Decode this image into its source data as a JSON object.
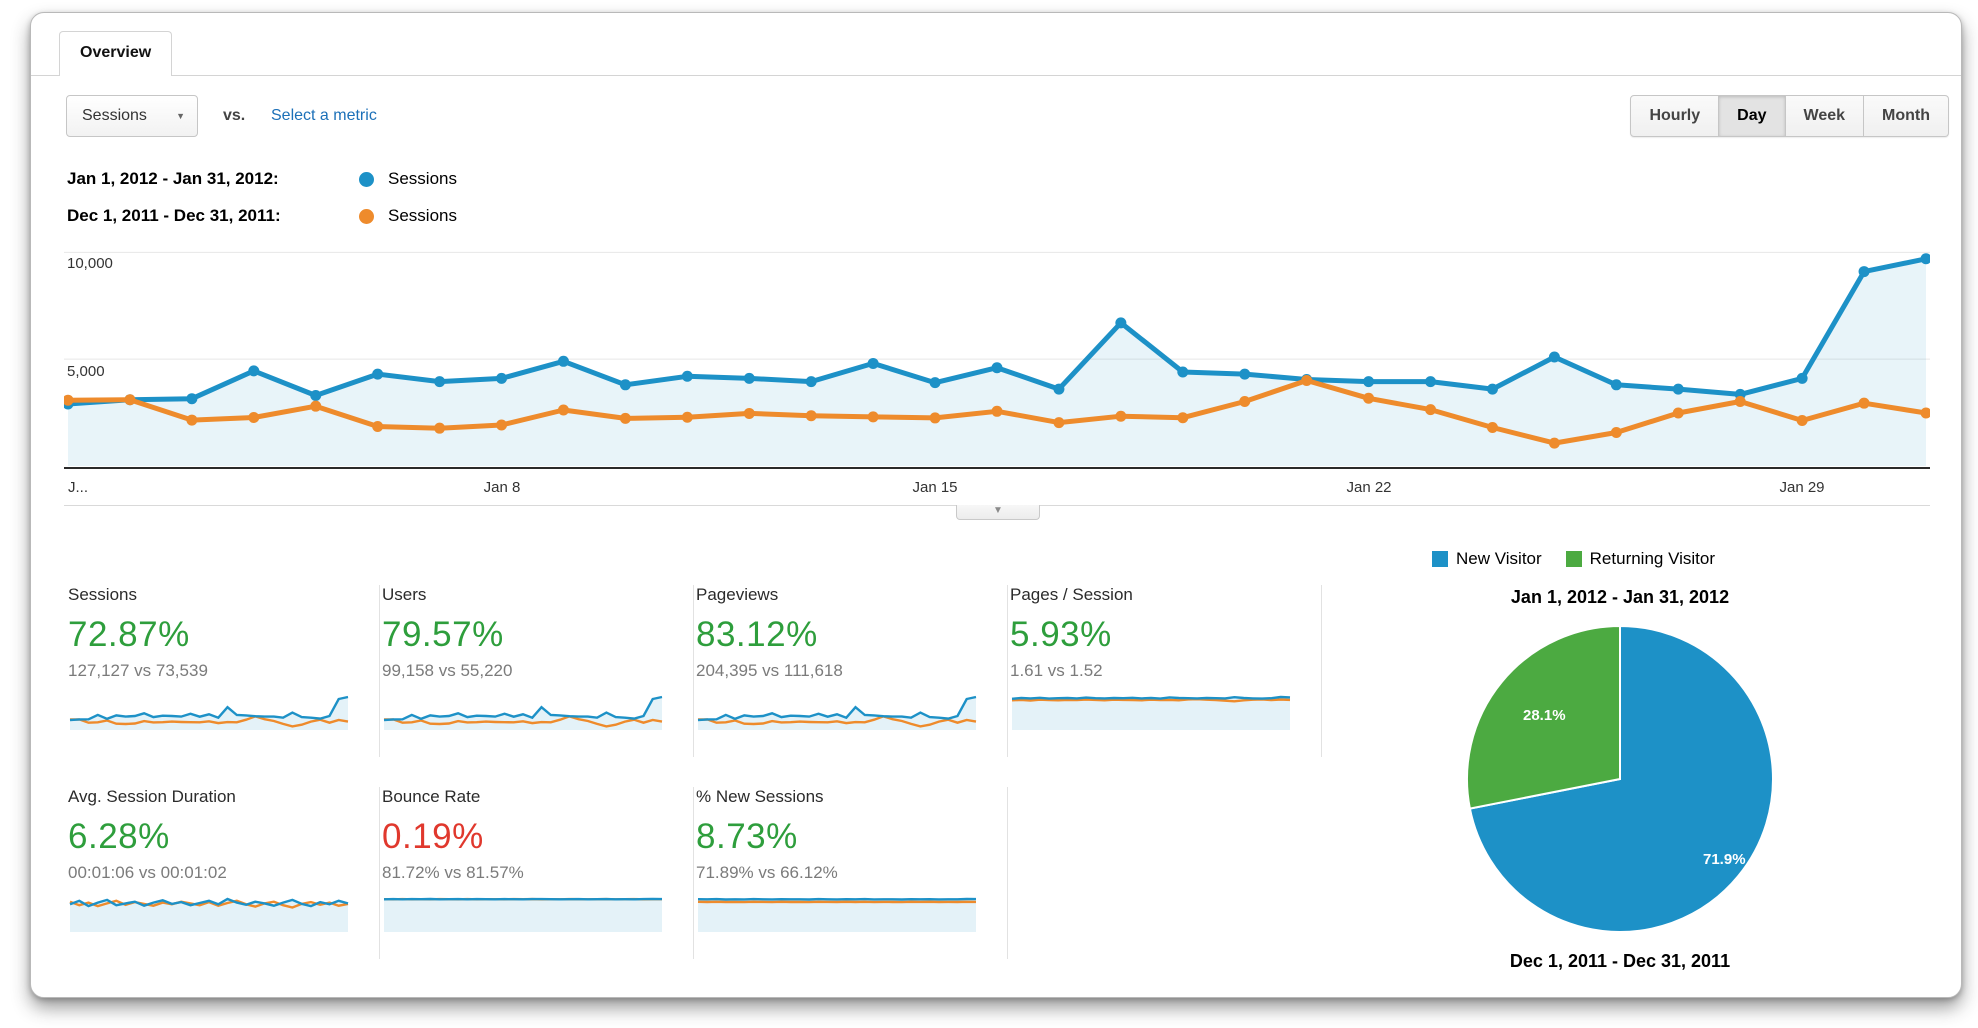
{
  "tab": {
    "label": "Overview"
  },
  "toolbar": {
    "metric_selector": "Sessions",
    "vs_label": "vs.",
    "select_metric_link": "Select a metric",
    "granularity_options": [
      "Hourly",
      "Day",
      "Week",
      "Month"
    ],
    "granularity_active": "Day"
  },
  "timeline_legend": [
    {
      "date_range": "Jan 1, 2012 - Jan 31, 2012:",
      "metric": "Sessions",
      "color": "#1d91c7"
    },
    {
      "date_range": "Dec 1, 2011 - Dec 31, 2011:",
      "metric": "Sessions",
      "color": "#ee8b2c"
    }
  ],
  "colors": {
    "current": "#1d91c7",
    "previous": "#ee8b2c",
    "positive": "#2e9e3c",
    "negative": "#e0382d",
    "area_fill": "#1d91c7"
  },
  "chart_data": [
    {
      "id": "sessions-timeline",
      "type": "line",
      "title": "Sessions by day, Jan 1 2012 - Jan 31 2012 vs Dec 1 2011 - Dec 31 2011",
      "x_tick_labels": [
        "J...",
        "Jan 8",
        "Jan 15",
        "Jan 22",
        "Jan 29"
      ],
      "x_tick_days": [
        1,
        8,
        15,
        22,
        29
      ],
      "y_tick_labels": [
        "5,000",
        "10,000"
      ],
      "y_tick_values": [
        5000,
        10000
      ],
      "ylim": [
        0,
        10250
      ],
      "grid": true,
      "legend_position": "top-left",
      "series": [
        {
          "name": "Sessions — Jan 1, 2012 - Jan 31, 2012",
          "color": "#1d91c7",
          "values": [
            2900,
            3100,
            3150,
            4450,
            3300,
            4300,
            3950,
            4100,
            4900,
            3800,
            4200,
            4100,
            3950,
            4800,
            3900,
            4600,
            3600,
            6700,
            4400,
            4300,
            4050,
            3950,
            3950,
            3600,
            5100,
            3800,
            3600,
            3350,
            4100,
            9100,
            9700
          ]
        },
        {
          "name": "Sessions — Dec 1, 2011 - Dec 31, 2011",
          "color": "#ee8b2c",
          "values": [
            3080,
            3100,
            2150,
            2270,
            2800,
            1850,
            1770,
            1920,
            2620,
            2230,
            2280,
            2460,
            2350,
            2300,
            2250,
            2560,
            2030,
            2330,
            2260,
            3020,
            4000,
            3170,
            2640,
            1800,
            1070,
            1570,
            2480,
            3020,
            2130,
            2940,
            2480
          ]
        }
      ]
    },
    {
      "id": "visitor-type-pie",
      "type": "pie",
      "title": "Jan 1, 2012 - Jan 31, 2012",
      "footer_title": "Dec 1, 2011 - Dec 31, 2011",
      "legend": [
        {
          "label": "New Visitor",
          "color": "#1d91c7"
        },
        {
          "label": "Returning Visitor",
          "color": "#4caa41"
        }
      ],
      "slices": [
        {
          "label": "New Visitor",
          "value": 71.9,
          "display": "71.9%",
          "color": "#1d91c7"
        },
        {
          "label": "Returning Visitor",
          "value": 28.1,
          "display": "28.1%",
          "color": "#4caa41"
        }
      ]
    }
  ],
  "cards": [
    {
      "label": "Sessions",
      "change": "72.87%",
      "trend": "positive",
      "compare": "127,127 vs 73,539",
      "spark": "main"
    },
    {
      "label": "Users",
      "change": "79.57%",
      "trend": "positive",
      "compare": "99,158 vs 55,220",
      "spark": "main"
    },
    {
      "label": "Pageviews",
      "change": "83.12%",
      "trend": "positive",
      "compare": "204,395 vs 111,618",
      "spark": "main"
    },
    {
      "label": "Pages / Session",
      "change": "5.93%",
      "trend": "positive",
      "compare": "1.61 vs 1.52",
      "spark": "pages"
    },
    {
      "label": "Avg. Session Duration",
      "change": "6.28%",
      "trend": "positive",
      "compare": "00:01:06 vs 00:01:02",
      "spark": "duration"
    },
    {
      "label": "Bounce Rate",
      "change": "0.19%",
      "trend": "negative",
      "compare": "81.72% vs 81.57%",
      "spark": "bounce"
    },
    {
      "label": "% New Sessions",
      "change": "8.73%",
      "trend": "positive",
      "compare": "71.89% vs 66.12%",
      "spark": "newsessions"
    }
  ],
  "sparks": {
    "pages": {
      "cur": [
        1.58,
        1.62,
        1.6,
        1.63,
        1.59,
        1.61,
        1.62,
        1.6,
        1.64,
        1.61,
        1.6,
        1.62,
        1.61,
        1.63,
        1.6,
        1.62,
        1.59,
        1.65,
        1.62,
        1.61,
        1.6,
        1.62,
        1.61,
        1.6,
        1.66,
        1.62,
        1.6,
        1.59,
        1.61,
        1.67,
        1.65
      ],
      "prev": [
        1.5,
        1.52,
        1.49,
        1.53,
        1.51,
        1.5,
        1.52,
        1.51,
        1.54,
        1.52,
        1.5,
        1.53,
        1.52,
        1.51,
        1.5,
        1.53,
        1.51,
        1.52,
        1.5,
        1.55,
        1.56,
        1.53,
        1.51,
        1.48,
        1.45,
        1.5,
        1.53,
        1.55,
        1.51,
        1.54,
        1.52
      ]
    },
    "duration": {
      "cur": [
        62,
        70,
        58,
        66,
        72,
        60,
        64,
        68,
        59,
        66,
        71,
        63,
        67,
        60,
        65,
        70,
        62,
        74,
        66,
        61,
        68,
        64,
        59,
        66,
        72,
        63,
        58,
        67,
        62,
        70,
        64
      ],
      "prev": [
        68,
        60,
        66,
        58,
        64,
        70,
        61,
        67,
        63,
        59,
        66,
        62,
        68,
        64,
        60,
        67,
        59,
        65,
        70,
        62,
        57,
        64,
        68,
        60,
        55,
        63,
        67,
        61,
        66,
        59,
        63
      ]
    },
    "bounce": {
      "cur": [
        81.5,
        82.0,
        81.3,
        81.8,
        81.6,
        82.1,
        81.4,
        81.7,
        81.9,
        81.5,
        81.8,
        81.6,
        81.4,
        81.9,
        81.7,
        81.5,
        81.8,
        82.0,
        81.6,
        81.4,
        81.7,
        81.9,
        81.5,
        81.6,
        81.8,
        81.4,
        81.7,
        81.5,
        81.9,
        82.2,
        81.8
      ],
      "prev": [
        81.6,
        81.4,
        81.8,
        81.5,
        81.7,
        81.3,
        81.9,
        81.6,
        81.4,
        81.8,
        81.5,
        81.7,
        81.6,
        81.3,
        81.8,
        81.6,
        81.9,
        81.4,
        81.7,
        81.5,
        81.8,
        81.6,
        81.3,
        81.7,
        81.9,
        81.5,
        81.6,
        81.8,
        81.4,
        81.7,
        81.6
      ]
    },
    "newsessions": {
      "cur": [
        72.1,
        71.8,
        72.4,
        71.5,
        72.0,
        71.7,
        72.3,
        71.9,
        71.6,
        72.2,
        71.8,
        72.0,
        71.5,
        72.4,
        71.9,
        71.7,
        72.1,
        71.8,
        72.3,
        71.6,
        72.0,
        71.9,
        71.5,
        72.2,
        71.8,
        72.1,
        71.6,
        72.0,
        71.8,
        72.6,
        72.3
      ],
      "prev": [
        66.3,
        65.9,
        66.5,
        66.0,
        66.2,
        65.8,
        66.4,
        66.1,
        65.7,
        66.3,
        66.0,
        66.2,
        65.8,
        66.4,
        66.1,
        65.9,
        66.3,
        66.0,
        66.5,
        65.8,
        66.2,
        66.0,
        65.7,
        66.3,
        66.1,
        66.4,
        65.9,
        66.2,
        66.0,
        66.5,
        66.2
      ]
    }
  }
}
